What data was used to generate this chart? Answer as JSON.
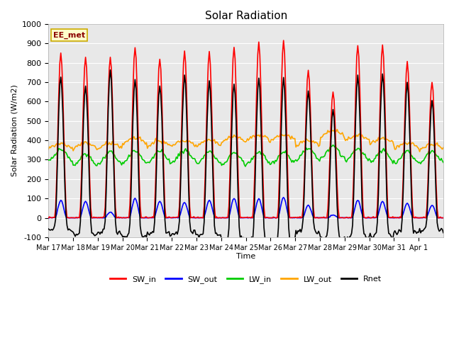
{
  "title": "Solar Radiation",
  "ylabel": "Solar Radiation (W/m2)",
  "xlabel": "Time",
  "ylim": [
    -100,
    1000
  ],
  "bg_color": "#e8e8e8",
  "grid_color": "#ffffff",
  "legend_label": "EE_met",
  "series": {
    "SW_in": {
      "color": "#ff0000",
      "lw": 1.2
    },
    "SW_out": {
      "color": "#0000ff",
      "lw": 1.2
    },
    "LW_in": {
      "color": "#00cc00",
      "lw": 1.2
    },
    "LW_out": {
      "color": "#ffa500",
      "lw": 1.2
    },
    "Rnet": {
      "color": "#000000",
      "lw": 1.2
    }
  },
  "xtick_labels": [
    "Mar 17",
    "Mar 18",
    "Mar 19",
    "Mar 20",
    "Mar 21",
    "Mar 22",
    "Mar 23",
    "Mar 24",
    "Mar 25",
    "Mar 26",
    "Mar 27",
    "Mar 28",
    "Mar 29",
    "Mar 30",
    "Mar 31",
    "Apr 1"
  ],
  "xtick_positions": [
    0,
    1,
    2,
    3,
    4,
    5,
    6,
    7,
    8,
    9,
    10,
    11,
    12,
    13,
    14,
    15
  ],
  "ytick_vals": [
    -100,
    0,
    100,
    200,
    300,
    400,
    500,
    600,
    700,
    800,
    900,
    1000
  ],
  "sw_in_peaks": [
    850,
    830,
    830,
    880,
    820,
    860,
    855,
    880,
    905,
    910,
    760,
    650,
    890,
    890,
    800,
    700
  ],
  "sw_out_peaks": [
    90,
    85,
    30,
    100,
    85,
    80,
    90,
    100,
    100,
    105,
    65,
    15,
    90,
    85,
    75,
    65
  ],
  "lw_in_base": [
    325,
    300,
    310,
    315,
    315,
    320,
    310,
    305,
    310,
    310,
    330,
    340,
    325,
    320,
    315,
    315
  ],
  "lw_out_base": [
    355,
    355,
    355,
    380,
    365,
    370,
    370,
    390,
    395,
    400,
    370,
    420,
    395,
    380,
    355,
    350
  ]
}
